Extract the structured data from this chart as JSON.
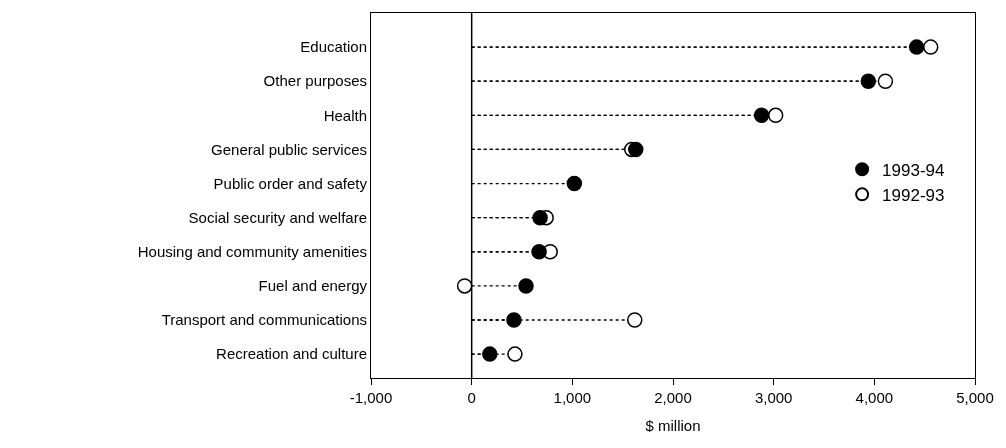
{
  "chart_data": {
    "type": "lollipop",
    "orientation": "horizontal",
    "xlabel": "$ million",
    "categories": [
      "Education",
      "Other purposes",
      "Health",
      "General public services",
      "Public order and safety",
      "Social security and welfare",
      "Housing and community amenities",
      "Fuel and energy",
      "Transport and communications",
      "Recreation and culture"
    ],
    "series": [
      {
        "name": "1993-94",
        "color": "#000000",
        "values": [
          4420,
          3940,
          2880,
          1630,
          1020,
          680,
          670,
          540,
          420,
          180
        ]
      },
      {
        "name": "1992-93",
        "color": "#ffffff",
        "values": [
          4560,
          4110,
          3020,
          1590,
          null,
          740,
          780,
          -70,
          1620,
          430
        ]
      }
    ],
    "xlim": [
      -1000,
      5000
    ],
    "xticks": [
      {
        "value": -1000,
        "label": "-1,000"
      },
      0,
      {
        "value": 1000,
        "label": "1,000"
      },
      {
        "value": 2000,
        "label": "2,000"
      },
      {
        "value": 3000,
        "label": "3,000"
      },
      {
        "value": 4000,
        "label": "4,000"
      },
      {
        "value": 5000,
        "label": "5,000"
      }
    ],
    "ref_lines": [
      {
        "axis": "x",
        "value": 0,
        "color": "#000000"
      }
    ],
    "marker": "circle",
    "line_style": "dotted",
    "legend": "right"
  }
}
